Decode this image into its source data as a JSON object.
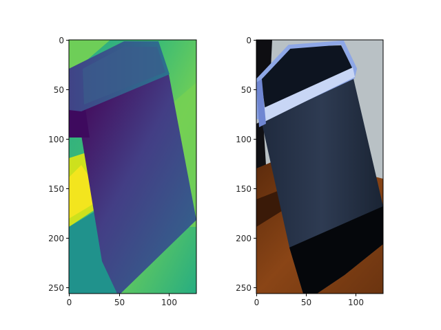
{
  "panels": [
    {
      "id": "depth",
      "colormap": "viridis",
      "xlim": [
        0,
        128
      ],
      "ylim": [
        256,
        0
      ],
      "xticks": [
        0,
        50,
        100
      ],
      "yticks": [
        0,
        50,
        100,
        150,
        200,
        250
      ],
      "xtick_labels": [
        "0",
        "50",
        "100"
      ],
      "ytick_labels": [
        "0",
        "50",
        "100",
        "150",
        "200",
        "250"
      ]
    },
    {
      "id": "rgb",
      "xlim": [
        0,
        128
      ],
      "ylim": [
        256,
        0
      ],
      "xticks": [
        0,
        50,
        100
      ],
      "yticks": [
        0,
        50,
        100,
        150,
        200,
        250
      ],
      "xtick_labels": [
        "0",
        "50",
        "100"
      ],
      "ytick_labels": [
        "0",
        "50",
        "100",
        "150",
        "200",
        "250"
      ]
    }
  ]
}
